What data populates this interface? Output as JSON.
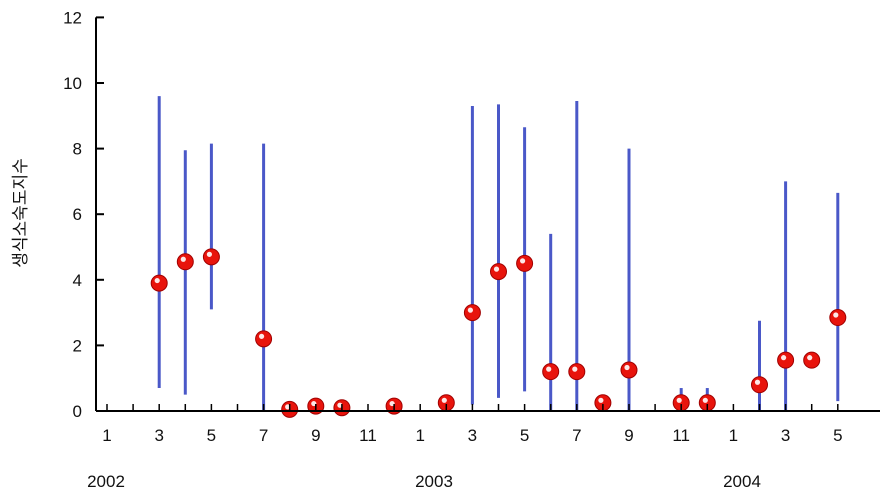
{
  "chart_data": {
    "type": "scatter",
    "ylabel": "생식소숙도지수",
    "ylim": [
      0,
      12
    ],
    "yticks": [
      0,
      2,
      4,
      6,
      8,
      10,
      12
    ],
    "x_month_labels": [
      "1",
      "3",
      "5",
      "7",
      "9",
      "11",
      "1",
      "3",
      "5",
      "7",
      "9",
      "11",
      "1",
      "3",
      "5"
    ],
    "years": [
      "2002",
      "2003",
      "2004"
    ],
    "point_color": "#e8140c",
    "errorbar_color": "#4a58c8",
    "points": [
      {
        "date": "2002-03",
        "y": 3.9,
        "low": 0.7,
        "high": 9.6
      },
      {
        "date": "2002-04",
        "y": 4.55,
        "low": 0.5,
        "high": 7.95
      },
      {
        "date": "2002-05",
        "y": 4.7,
        "low": 3.1,
        "high": 8.15
      },
      {
        "date": "2002-07",
        "y": 2.2,
        "low": 0.0,
        "high": 8.15
      },
      {
        "date": "2002-08",
        "y": 0.05,
        "low": 0.0,
        "high": 0.1
      },
      {
        "date": "2002-09",
        "y": 0.15,
        "low": 0.0,
        "high": 0.35
      },
      {
        "date": "2002-10",
        "y": 0.1,
        "low": 0.0,
        "high": 0.2
      },
      {
        "date": "2002-12",
        "y": 0.15,
        "low": 0.0,
        "high": 0.3
      },
      {
        "date": "2003-02",
        "y": 0.25,
        "low": 0.0,
        "high": 0.45
      },
      {
        "date": "2003-03",
        "y": 3.0,
        "low": 0.2,
        "high": 9.3
      },
      {
        "date": "2003-04",
        "y": 4.25,
        "low": 0.4,
        "high": 9.35
      },
      {
        "date": "2003-05",
        "y": 4.5,
        "low": 0.6,
        "high": 8.65
      },
      {
        "date": "2003-06",
        "y": 1.2,
        "low": 0.0,
        "high": 5.4
      },
      {
        "date": "2003-07",
        "y": 1.2,
        "low": 0.0,
        "high": 9.45
      },
      {
        "date": "2003-08",
        "y": 0.25,
        "low": 0.0,
        "high": 0.45
      },
      {
        "date": "2003-09",
        "y": 1.25,
        "low": 0.0,
        "high": 8.0
      },
      {
        "date": "2003-11",
        "y": 0.25,
        "low": 0.0,
        "high": 0.7
      },
      {
        "date": "2003-12",
        "y": 0.25,
        "low": 0.0,
        "high": 0.7
      },
      {
        "date": "2004-02",
        "y": 0.8,
        "low": 0.0,
        "high": 2.75
      },
      {
        "date": "2004-03",
        "y": 1.55,
        "low": 0.0,
        "high": 7.0
      },
      {
        "date": "2004-04",
        "y": 1.55,
        "low": 1.55,
        "high": 1.55
      },
      {
        "date": "2004-05",
        "y": 2.85,
        "low": 0.3,
        "high": 6.65
      }
    ]
  }
}
